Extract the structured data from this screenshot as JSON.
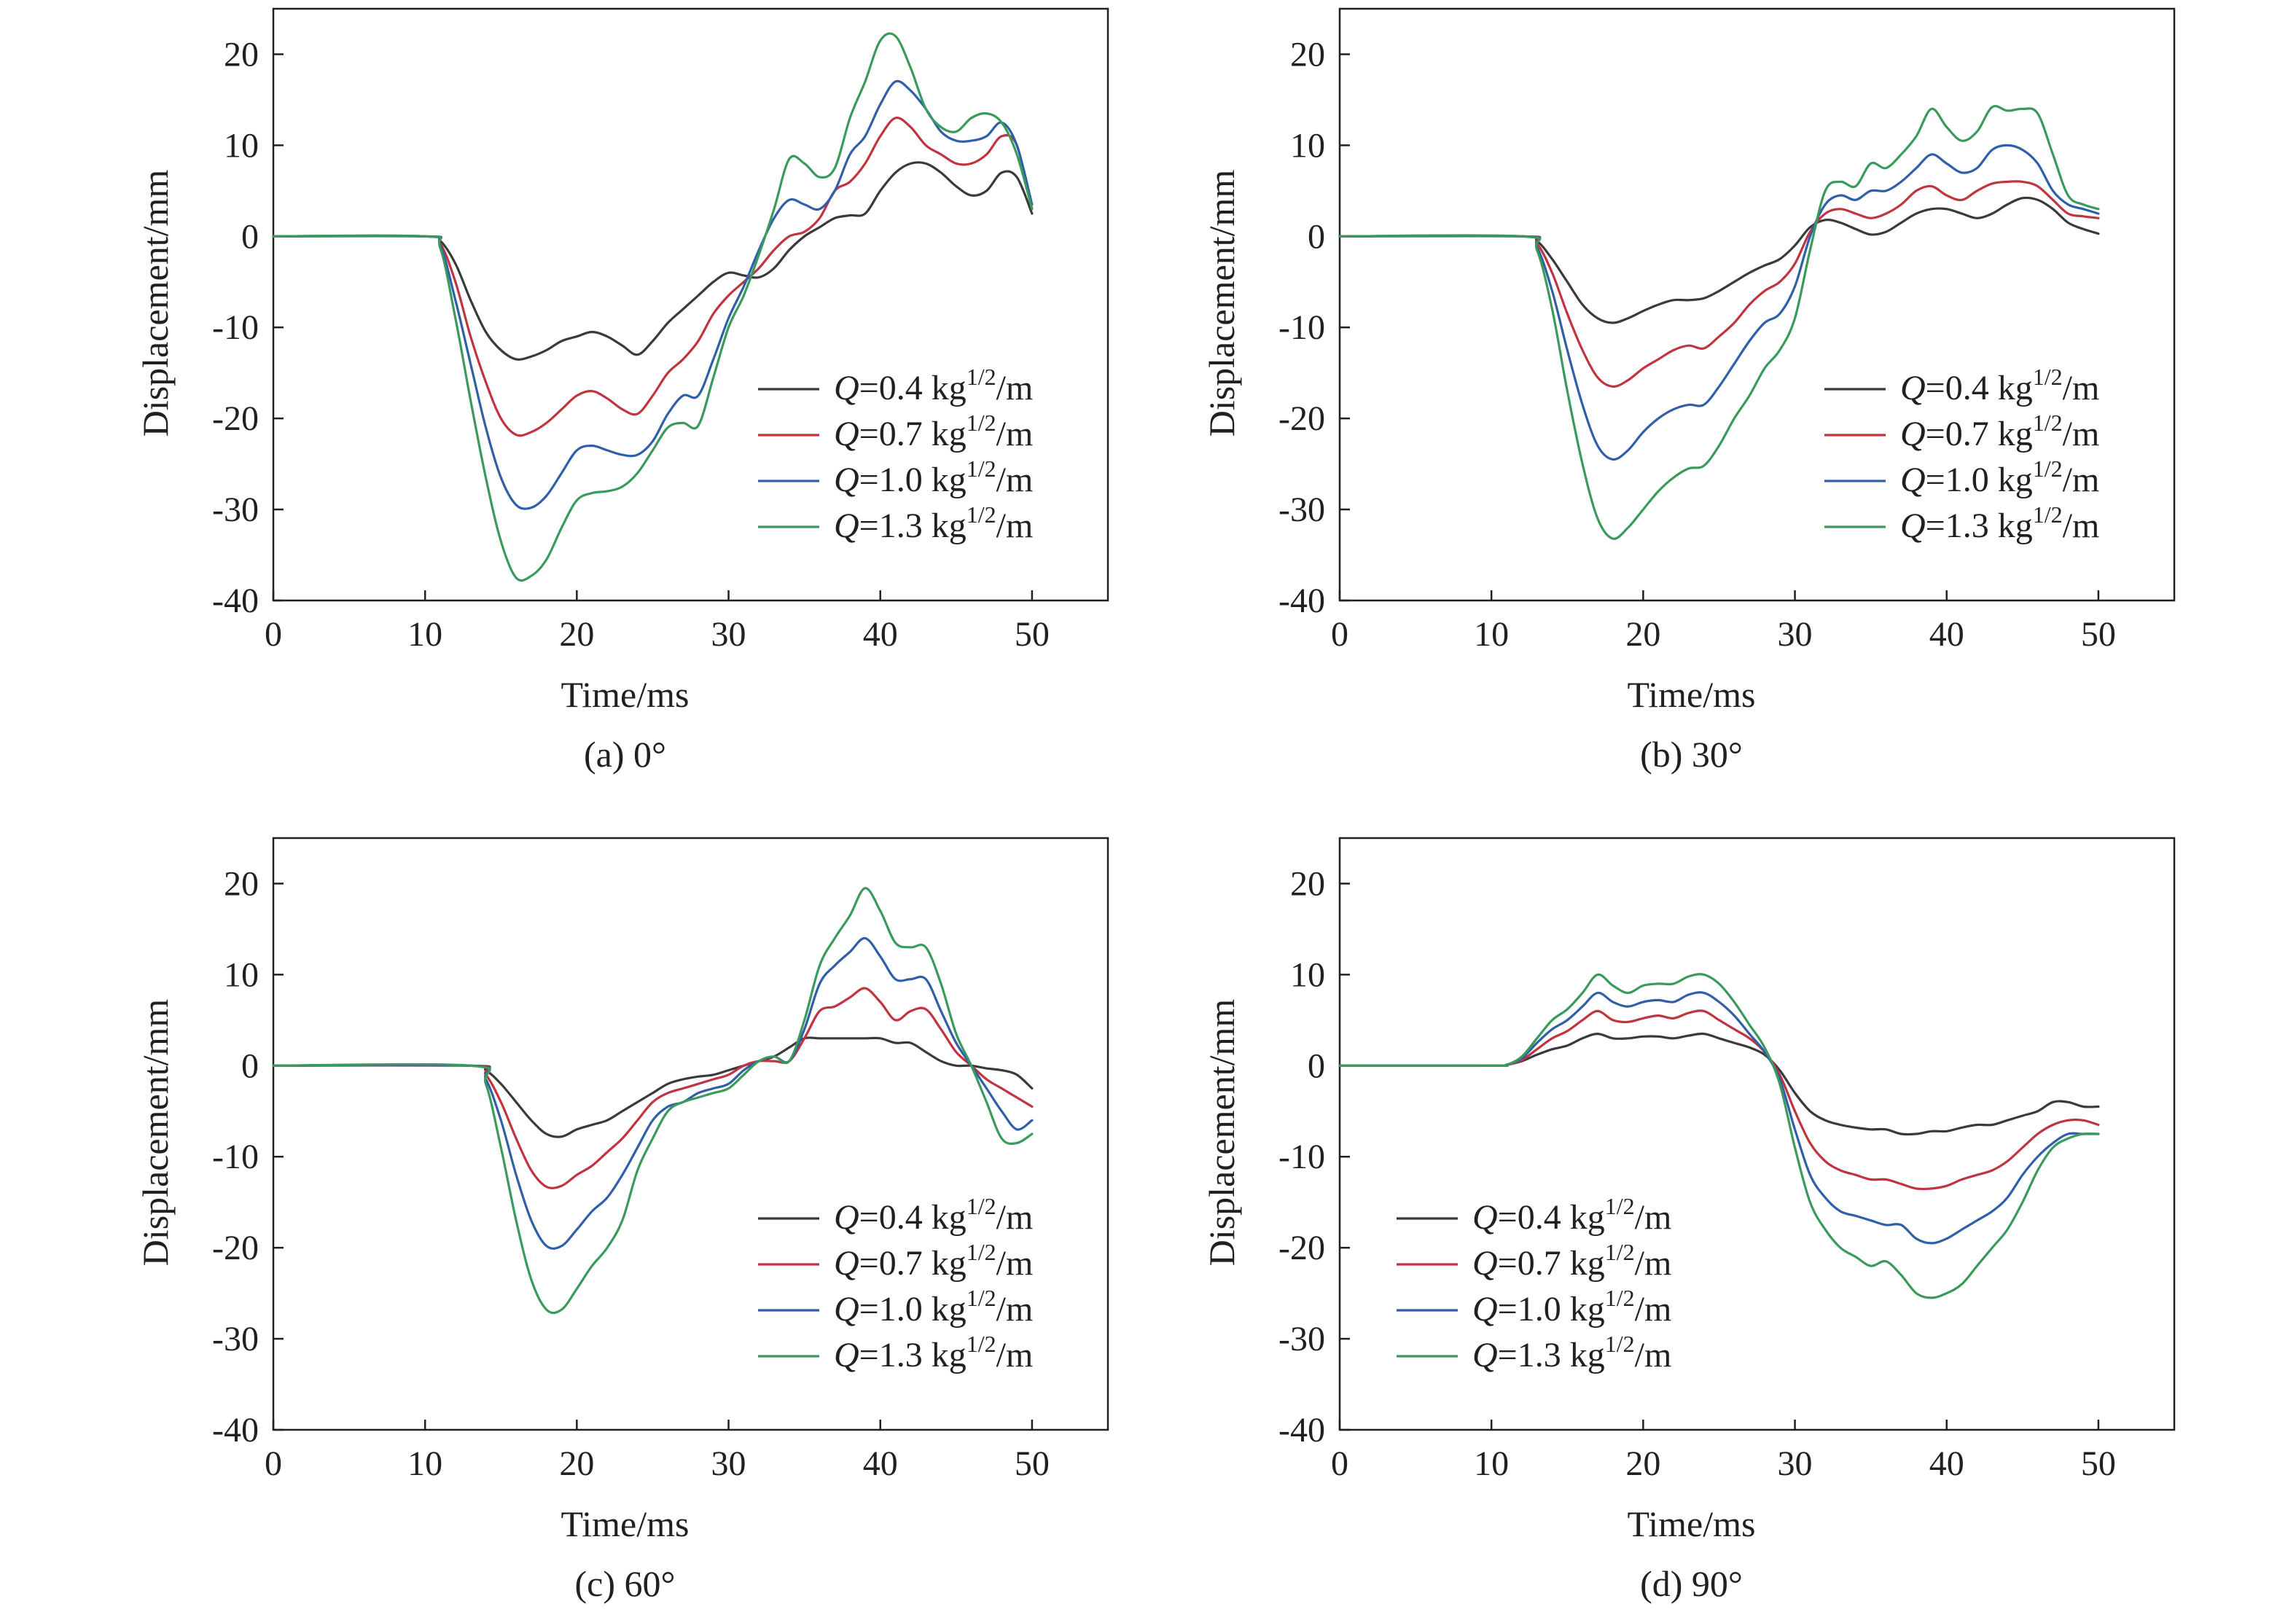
{
  "figure": {
    "colors": {
      "axis": "#231f20",
      "series": [
        "#3a3a3a",
        "#c0343f",
        "#2f5fa8",
        "#3a9a5c"
      ]
    }
  },
  "chart_data": [
    {
      "type": "line",
      "caption": "(a) 0°",
      "xlabel": "Time/ms",
      "ylabel": "Displacement/mm",
      "xlim": [
        0,
        55
      ],
      "ylim": [
        -40,
        25
      ],
      "xticks": [
        0,
        10,
        20,
        30,
        40,
        50
      ],
      "yticks": [
        -40,
        -30,
        -20,
        -10,
        0,
        10,
        20
      ],
      "grid": false,
      "legend_position": "center-right",
      "x": [
        0,
        10,
        11,
        12,
        13,
        14,
        15,
        16,
        17,
        18,
        19,
        20,
        21,
        22,
        23,
        24,
        25,
        26,
        27,
        28,
        29,
        30,
        31,
        32,
        33,
        34,
        35,
        36,
        37,
        38,
        39,
        40,
        41,
        42,
        43,
        44,
        45,
        46,
        47,
        48,
        49,
        50
      ],
      "series": [
        {
          "name_prefix": "Q",
          "name_value": "=0.4 kg",
          "name_sup": "1/2",
          "name_unit": "/m",
          "values": [
            0,
            0,
            -0.5,
            -3,
            -7,
            -10.5,
            -12.5,
            -13.5,
            -13.2,
            -12.5,
            -11.5,
            -11,
            -10.5,
            -11,
            -12,
            -13,
            -11.5,
            -9.5,
            -8,
            -6.5,
            -5,
            -4,
            -4.3,
            -4.5,
            -3.5,
            -1.5,
            0,
            1,
            2,
            2.3,
            2.5,
            5,
            7,
            8,
            8,
            7,
            5.5,
            4.5,
            5,
            7,
            6.5,
            2.5
          ]
        },
        {
          "name_prefix": "Q",
          "name_value": "=0.7 kg",
          "name_sup": "1/2",
          "name_unit": "/m",
          "values": [
            0,
            0,
            -0.8,
            -5,
            -11,
            -16,
            -20,
            -21.8,
            -21.5,
            -20.5,
            -19,
            -17.5,
            -17,
            -17.8,
            -19,
            -19.5,
            -17.5,
            -15,
            -13.5,
            -11.5,
            -8.5,
            -6.5,
            -5,
            -3.5,
            -1.5,
            0,
            0.5,
            2,
            5,
            6,
            8,
            11,
            13,
            12,
            10,
            9,
            8,
            8,
            9,
            11,
            10,
            3
          ]
        },
        {
          "name_prefix": "Q",
          "name_value": "=1.0 kg",
          "name_sup": "1/2",
          "name_unit": "/m",
          "values": [
            0,
            0,
            -1,
            -7,
            -14,
            -21,
            -26.5,
            -29.5,
            -29.8,
            -28.5,
            -26,
            -23.5,
            -23,
            -23.5,
            -24,
            -24,
            -22.5,
            -19.5,
            -17.5,
            -17.5,
            -13.5,
            -9,
            -5.5,
            -1.5,
            2,
            4,
            3.5,
            3,
            5,
            9,
            11,
            14.5,
            17,
            16,
            14,
            11.5,
            10.5,
            10.5,
            11,
            12.5,
            10,
            3.5
          ]
        },
        {
          "name_prefix": "Q",
          "name_value": "=1.3 kg",
          "name_sup": "1/2",
          "name_unit": "/m",
          "values": [
            0,
            0,
            -1.3,
            -9,
            -18,
            -26.5,
            -33.5,
            -37.5,
            -37.3,
            -35.5,
            -32,
            -29,
            -28.2,
            -28,
            -27.5,
            -26,
            -23.5,
            -21,
            -20.5,
            -20.8,
            -15.5,
            -10,
            -6.5,
            -2,
            3,
            8.5,
            8,
            6.5,
            7.5,
            13,
            17,
            21.5,
            22,
            18.5,
            14,
            12,
            11.5,
            13,
            13.5,
            12.5,
            9,
            3
          ]
        }
      ]
    },
    {
      "type": "line",
      "caption": "(b) 30°",
      "xlabel": "Time/ms",
      "ylabel": "Displacement/mm",
      "xlim": [
        0,
        55
      ],
      "ylim": [
        -40,
        25
      ],
      "xticks": [
        0,
        10,
        20,
        30,
        40,
        50
      ],
      "yticks": [
        -40,
        -30,
        -20,
        -10,
        0,
        10,
        20
      ],
      "grid": false,
      "legend_position": "center-right",
      "x": [
        0,
        12,
        13,
        14,
        15,
        16,
        17,
        18,
        19,
        20,
        21,
        22,
        23,
        24,
        25,
        26,
        27,
        28,
        29,
        30,
        31,
        32,
        33,
        34,
        35,
        36,
        37,
        38,
        39,
        40,
        41,
        42,
        43,
        44,
        45,
        46,
        47,
        48,
        49,
        50
      ],
      "series": [
        {
          "name_prefix": "Q",
          "name_value": "=0.4 kg",
          "name_sup": "1/2",
          "name_unit": "/m",
          "values": [
            0,
            0,
            -0.5,
            -2.5,
            -5,
            -7.5,
            -9,
            -9.5,
            -9,
            -8.2,
            -7.5,
            -7,
            -7,
            -6.8,
            -6,
            -5,
            -4,
            -3.2,
            -2.5,
            -1,
            1,
            1.8,
            1.5,
            0.8,
            0.2,
            0.5,
            1.5,
            2.5,
            3,
            3,
            2.5,
            2,
            2.5,
            3.5,
            4.2,
            4,
            3,
            1.5,
            0.8,
            0.3
          ]
        },
        {
          "name_prefix": "Q",
          "name_value": "=0.7 kg",
          "name_sup": "1/2",
          "name_unit": "/m",
          "values": [
            0,
            0,
            -0.8,
            -4,
            -8.5,
            -12.5,
            -15.5,
            -16.5,
            -15.8,
            -14.5,
            -13.5,
            -12.5,
            -12,
            -12.3,
            -11,
            -9.5,
            -7.5,
            -6,
            -5,
            -3,
            0.5,
            2.5,
            3,
            2.5,
            2,
            2.5,
            3.5,
            5,
            5.5,
            4.5,
            4,
            5,
            5.8,
            6,
            6,
            5.5,
            4,
            2.5,
            2.2,
            2
          ]
        },
        {
          "name_prefix": "Q",
          "name_value": "=1.0 kg",
          "name_sup": "1/2",
          "name_unit": "/m",
          "values": [
            0,
            0,
            -1.2,
            -6,
            -12.5,
            -18.5,
            -23,
            -24.5,
            -23.5,
            -21.5,
            -20,
            -19,
            -18.5,
            -18.5,
            -16.5,
            -14,
            -11.5,
            -9.5,
            -8.5,
            -5.5,
            0,
            3.5,
            4.5,
            4,
            5,
            5,
            6,
            7.5,
            9,
            8,
            7,
            7.5,
            9.5,
            10,
            9.5,
            8,
            5,
            3.5,
            3,
            2.5
          ]
        },
        {
          "name_prefix": "Q",
          "name_value": "=1.3 kg",
          "name_sup": "1/2",
          "name_unit": "/m",
          "values": [
            0,
            0,
            -1.5,
            -8,
            -17,
            -25,
            -31,
            -33.2,
            -32,
            -30,
            -28,
            -26.5,
            -25.5,
            -25.2,
            -23,
            -20,
            -17.5,
            -14.5,
            -12.5,
            -9,
            -1.5,
            5,
            6,
            5.5,
            8,
            7.5,
            9,
            11,
            14,
            12,
            10.5,
            11.5,
            14.2,
            13.8,
            14,
            13.5,
            9,
            4.5,
            3.5,
            3
          ]
        }
      ]
    },
    {
      "type": "line",
      "caption": "(c) 60°",
      "xlabel": "Time/ms",
      "ylabel": "Displacement/mm",
      "xlim": [
        0,
        55
      ],
      "ylim": [
        -40,
        25
      ],
      "xticks": [
        0,
        10,
        20,
        30,
        40,
        50
      ],
      "yticks": [
        -40,
        -30,
        -20,
        -10,
        0,
        10,
        20
      ],
      "grid": false,
      "legend_position": "bottom-right",
      "x": [
        0,
        13,
        14,
        15,
        16,
        17,
        18,
        19,
        20,
        21,
        22,
        23,
        24,
        25,
        26,
        27,
        28,
        29,
        30,
        31,
        32,
        33,
        34,
        35,
        36,
        37,
        38,
        39,
        40,
        41,
        42,
        43,
        44,
        45,
        46,
        47,
        48,
        49,
        50
      ],
      "series": [
        {
          "name_prefix": "Q",
          "name_value": "=0.4 kg",
          "name_sup": "1/2",
          "name_unit": "/m",
          "values": [
            0,
            0,
            -0.5,
            -2,
            -4,
            -6,
            -7.5,
            -7.8,
            -7,
            -6.5,
            -6,
            -5,
            -4,
            -3,
            -2,
            -1.5,
            -1.2,
            -1,
            -0.5,
            0,
            0.5,
            1,
            2,
            3,
            3,
            3,
            3,
            3,
            3,
            2.5,
            2.5,
            1.5,
            0.5,
            0,
            0,
            -0.3,
            -0.5,
            -1,
            -2.5
          ]
        },
        {
          "name_prefix": "Q",
          "name_value": "=0.7 kg",
          "name_sup": "1/2",
          "name_unit": "/m",
          "values": [
            0,
            0,
            -1,
            -4,
            -8,
            -11.5,
            -13.3,
            -13.2,
            -12,
            -11,
            -9.5,
            -8,
            -6,
            -4,
            -3,
            -2.5,
            -2,
            -1.5,
            -1,
            0,
            0.5,
            0.5,
            0.5,
            3,
            6,
            6.5,
            7.5,
            8.5,
            7,
            5,
            6,
            6.2,
            4,
            1.5,
            0,
            -1.5,
            -2.5,
            -3.5,
            -4.5
          ]
        },
        {
          "name_prefix": "Q",
          "name_value": "=1.0 kg",
          "name_sup": "1/2",
          "name_unit": "/m",
          "values": [
            0,
            0,
            -1.5,
            -6,
            -12,
            -17,
            -19.8,
            -19.8,
            -18,
            -16,
            -14.5,
            -12,
            -9,
            -6,
            -4.5,
            -4,
            -3,
            -2.5,
            -2,
            -0.5,
            0.5,
            1,
            0.5,
            4,
            9,
            11,
            12.5,
            14,
            12,
            9.5,
            9.5,
            9.5,
            6,
            2.5,
            0,
            -2.5,
            -5,
            -7,
            -6
          ]
        },
        {
          "name_prefix": "Q",
          "name_value": "=1.3 kg",
          "name_sup": "1/2",
          "name_unit": "/m",
          "values": [
            0,
            0,
            -2,
            -9,
            -17,
            -23.5,
            -26.8,
            -26.8,
            -24.5,
            -22,
            -20,
            -17,
            -11.5,
            -8,
            -5,
            -4,
            -3.5,
            -3,
            -2.5,
            -1,
            0.5,
            1,
            0.5,
            5,
            11,
            14,
            16.5,
            19.5,
            17,
            13.5,
            13,
            13,
            9,
            3.5,
            0,
            -4,
            -8,
            -8.5,
            -7.5
          ]
        }
      ]
    },
    {
      "type": "line",
      "caption": "(d) 90°",
      "xlabel": "Time/ms",
      "ylabel": "Displacement/mm",
      "xlim": [
        0,
        55
      ],
      "ylim": [
        -40,
        25
      ],
      "xticks": [
        0,
        10,
        20,
        30,
        40,
        50
      ],
      "yticks": [
        -40,
        -30,
        -20,
        -10,
        0,
        10,
        20
      ],
      "grid": false,
      "legend_position": "bottom-left",
      "x": [
        0,
        10,
        11,
        12,
        13,
        14,
        15,
        16,
        17,
        18,
        19,
        20,
        21,
        22,
        23,
        24,
        25,
        26,
        27,
        28,
        29,
        30,
        31,
        32,
        33,
        34,
        35,
        36,
        37,
        38,
        39,
        40,
        41,
        42,
        43,
        44,
        45,
        46,
        47,
        48,
        49,
        50
      ],
      "series": [
        {
          "name_prefix": "Q",
          "name_value": "=0.4 kg",
          "name_sup": "1/2",
          "name_unit": "/m",
          "values": [
            0,
            0,
            0.1,
            0.5,
            1.2,
            1.8,
            2.2,
            3,
            3.5,
            3,
            3,
            3.2,
            3.2,
            3,
            3.3,
            3.5,
            3,
            2.5,
            2,
            1.2,
            -0.5,
            -3,
            -5,
            -6,
            -6.5,
            -6.8,
            -7,
            -7,
            -7.5,
            -7.5,
            -7.2,
            -7.2,
            -6.8,
            -6.5,
            -6.5,
            -6,
            -5.5,
            -5,
            -4,
            -4,
            -4.5,
            -4.5
          ]
        },
        {
          "name_prefix": "Q",
          "name_value": "=0.7 kg",
          "name_sup": "1/2",
          "name_unit": "/m",
          "values": [
            0,
            0,
            0.1,
            0.6,
            1.8,
            3,
            3.8,
            5,
            6,
            5,
            4.8,
            5.2,
            5.5,
            5.2,
            5.8,
            6,
            5,
            4,
            3,
            1.5,
            -1,
            -5,
            -8.5,
            -10.5,
            -11.5,
            -12,
            -12.5,
            -12.5,
            -13,
            -13.5,
            -13.5,
            -13.2,
            -12.5,
            -12,
            -11.5,
            -10.5,
            -9,
            -7.5,
            -6.5,
            -6,
            -6,
            -6.5
          ]
        },
        {
          "name_prefix": "Q",
          "name_value": "=1.0 kg",
          "name_sup": "1/2",
          "name_unit": "/m",
          "values": [
            0,
            0,
            0.1,
            0.8,
            2.5,
            4,
            5,
            6.5,
            8,
            7,
            6.5,
            7,
            7.2,
            7,
            7.8,
            8,
            7,
            5.5,
            3.5,
            1.5,
            -1.5,
            -7,
            -12,
            -14.5,
            -16,
            -16.5,
            -17,
            -17.5,
            -17.5,
            -19,
            -19.5,
            -19,
            -18,
            -17,
            -16,
            -14.5,
            -12,
            -10,
            -8.5,
            -7.5,
            -7.5,
            -7.5
          ]
        },
        {
          "name_prefix": "Q",
          "name_value": "=1.3 kg",
          "name_sup": "1/2",
          "name_unit": "/m",
          "values": [
            0,
            0,
            0.1,
            1,
            3,
            5,
            6.2,
            8,
            10,
            8.8,
            8,
            8.8,
            9,
            9,
            9.8,
            10,
            9,
            7,
            4.5,
            2,
            -2,
            -9,
            -15,
            -18,
            -20,
            -21,
            -22,
            -21.5,
            -23,
            -25,
            -25.5,
            -25,
            -24,
            -22,
            -20,
            -18,
            -15,
            -11.5,
            -9,
            -8,
            -7.5,
            -7.5
          ]
        }
      ]
    }
  ]
}
